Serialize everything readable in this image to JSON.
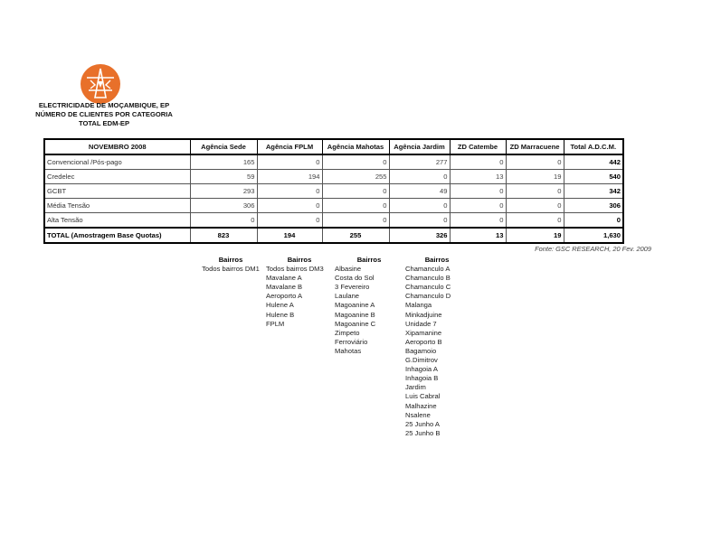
{
  "header": {
    "logo_color": "#e8702a",
    "lines": [
      "ELECTRICIDADE DE MOÇAMBIQUE, EP",
      "NÚMERO DE CLIENTES POR CATEGORIA",
      "TOTAL EDM-EP"
    ]
  },
  "table": {
    "columns": [
      "NOVEMBRO 2008",
      "Agência Sede",
      "Agência FPLM",
      "Agência Mahotas",
      "Agência Jardim",
      "ZD Catembe",
      "ZD Marracuene",
      "Total A.D.C.M."
    ],
    "rows": [
      {
        "label": "Convencional /Pós-pago",
        "values": [
          "165",
          "0",
          "0",
          "277",
          "0",
          "0",
          "442"
        ]
      },
      {
        "label": "Credelec",
        "values": [
          "59",
          "194",
          "255",
          "0",
          "13",
          "19",
          "540"
        ]
      },
      {
        "label": "GCBT",
        "values": [
          "293",
          "0",
          "0",
          "49",
          "0",
          "0",
          "342"
        ]
      },
      {
        "label": "Média Tensão",
        "values": [
          "306",
          "0",
          "0",
          "0",
          "0",
          "0",
          "306"
        ]
      },
      {
        "label": "Alta Tensão",
        "values": [
          "0",
          "0",
          "0",
          "0",
          "0",
          "0",
          "0"
        ]
      }
    ],
    "total": {
      "label": "TOTAL (Amostragem Base Quotas)",
      "values": [
        "823",
        "194",
        "255",
        "326",
        "13",
        "19",
        "1,630"
      ]
    }
  },
  "source": "Fonte: GSC RESEARCH, 20 Fev. 2009",
  "bairros": [
    {
      "header": "Bairros",
      "items": [
        "Todos bairros DM1"
      ]
    },
    {
      "header": "Bairros",
      "items": [
        "Todos bairros DM3",
        "Mavalane A",
        "Mavalane B",
        "Aeroporto A",
        "Hulene A",
        "Hulene B",
        "FPLM"
      ]
    },
    {
      "header": "Bairros",
      "items": [
        "Albasine",
        "Costa do Sol",
        "3 Fevereiro",
        "Laulane",
        "Magoanine A",
        "Magoanine B",
        "Magoanine C",
        "Zimpeto",
        "Ferroviário",
        "Mahotas"
      ]
    },
    {
      "header": "Bairros",
      "items": [
        "Chamanculo A",
        "Chamanculo B",
        "Chamanculo C",
        "Chamanculo D",
        "Malanga",
        "Minkadjuine",
        "Unidade 7",
        "Xipamanine",
        "Aeroporto B",
        "Bagamoio",
        "G.Dimitrov",
        "Inhagoia A",
        "Inhagoia B",
        "Jardim",
        "Luis Cabral",
        "Malhazine",
        "Nsalene",
        "25 Junho A",
        "25 Junho B"
      ]
    }
  ]
}
